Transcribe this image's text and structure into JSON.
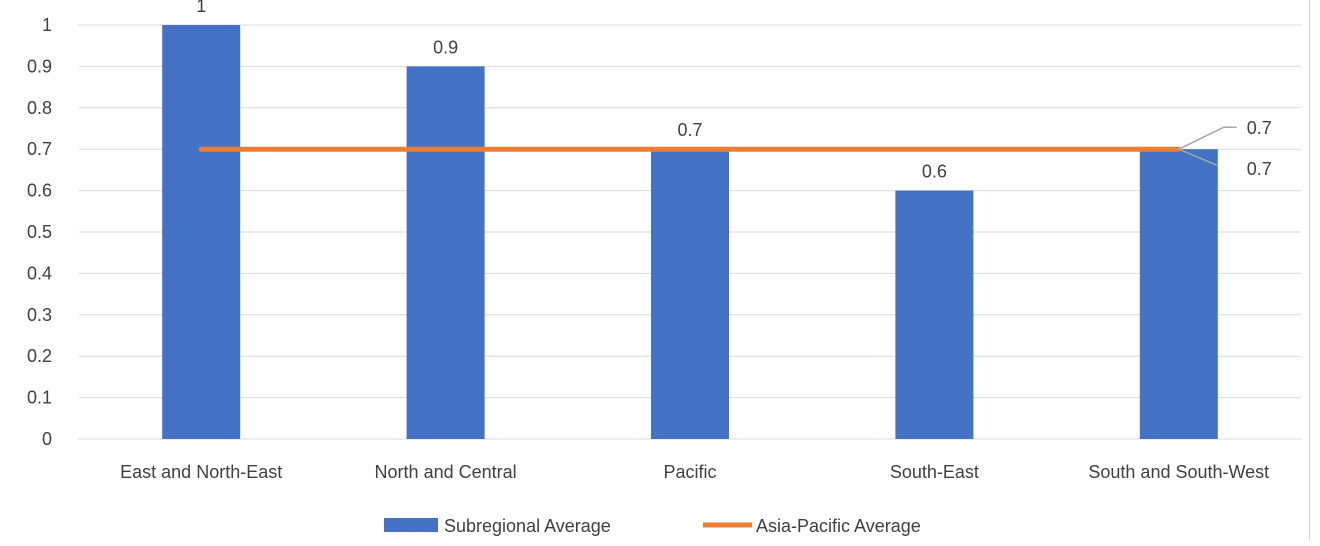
{
  "chart_data": {
    "type": "bar",
    "title": "",
    "xlabel": "",
    "ylabel": "",
    "categories": [
      "East and North-East",
      "North and Central",
      "Pacific",
      "South-East",
      "South and South-West"
    ],
    "series": [
      {
        "name": "Subregional Average",
        "type": "bar",
        "values": [
          1,
          0.9,
          0.7,
          0.6,
          0.7
        ],
        "data_labels": [
          "1",
          "0.9",
          "0.7",
          "0.6",
          "0.7"
        ],
        "color": "#4472C4"
      },
      {
        "name": "Asia-Pacific Average",
        "type": "line",
        "values": [
          0.7,
          0.7,
          0.7,
          0.7,
          0.7
        ],
        "end_label": "0.7",
        "color": "#ED7D31"
      }
    ],
    "ylim": [
      0,
      1
    ],
    "yticks": [
      "0",
      "0.1",
      "0.2",
      "0.3",
      "0.4",
      "0.5",
      "0.6",
      "0.7",
      "0.8",
      "0.9",
      "1"
    ],
    "grid": true,
    "legend_position": "bottom",
    "gridline_color": "#d9d9d9",
    "text_color": "#404040"
  }
}
